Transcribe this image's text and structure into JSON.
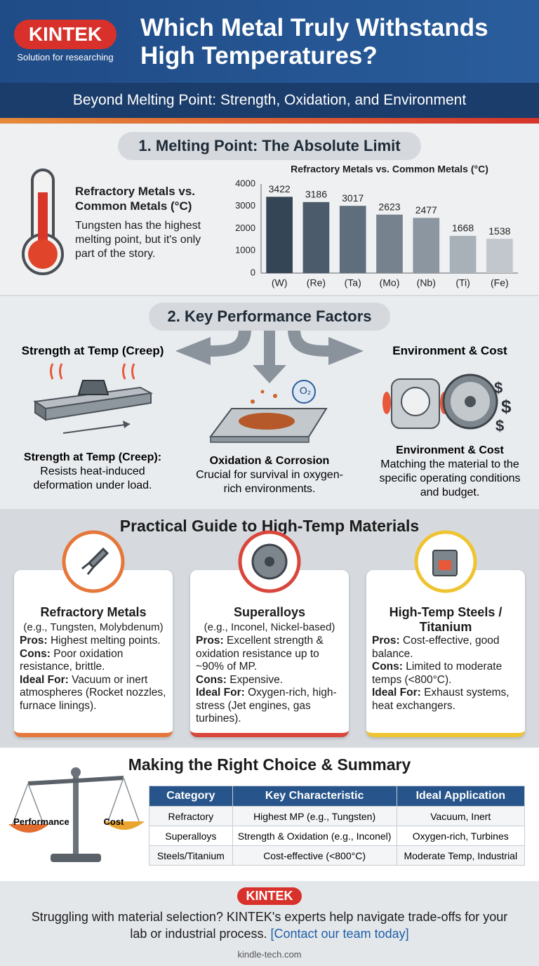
{
  "header": {
    "logo": "KINTEK",
    "tagline": "Solution for researching",
    "title": "Which Metal Truly Withstands High Temperatures?",
    "subtitle": "Beyond Melting Point: Strength, Oxidation, and Environment"
  },
  "section1": {
    "heading": "1. Melting Point: The Absolute Limit",
    "callout_title": "Refractory Metals vs. Common Metals (°C)",
    "callout_text": "Tungsten has the highest melting point, but it's only part of the story."
  },
  "chart_data": {
    "type": "bar",
    "title": "Refractory Metals vs. Common Metals (°C)",
    "categories": [
      "(W)",
      "(Re)",
      "(Ta)",
      "(Mo)",
      "(Nb)",
      "(Ti)",
      "(Fe)"
    ],
    "values": [
      3422,
      3186,
      3017,
      2623,
      2477,
      1668,
      1538
    ],
    "colors": [
      "#344556",
      "#4b5b6b",
      "#5f6e7c",
      "#76838f",
      "#8b96a0",
      "#a8b0b8",
      "#c1c7cd"
    ],
    "ylim": [
      0,
      4000
    ],
    "yticks": [
      0,
      1000,
      2000,
      3000,
      4000
    ],
    "grid": false
  },
  "section2": {
    "heading": "2. Key Performance Factors",
    "factors": [
      {
        "label": "Strength at Temp (Creep)",
        "title": "Strength at Temp (Creep):",
        "text": "Resists heat-induced deformation under load."
      },
      {
        "icon_label": "O₂",
        "title": "Oxidation & Corrosion",
        "text": "Crucial for survival in oxygen-rich environments."
      },
      {
        "label": "Environment & Cost",
        "icon_symbol": "$",
        "title": "Environment & Cost",
        "text": "Matching the material to the specific operating conditions and budget."
      }
    ]
  },
  "section3": {
    "heading": "Practical Guide to High-Temp Materials",
    "cards": [
      {
        "title": "Refractory Metals",
        "subtitle": "(e.g., Tungsten, Molybdenum)",
        "color": "#e5773a",
        "items": [
          {
            "label": "Pros:",
            "text": "Highest melting points."
          },
          {
            "label": "Cons:",
            "text": "Poor oxidation resistance, brittle."
          },
          {
            "label": "Ideal For:",
            "text": "Vacuum or inert atmospheres (Rocket nozzles, furnace linings)."
          }
        ]
      },
      {
        "title": "Superalloys",
        "subtitle": "(e.g., Inconel, Nickel-based)",
        "color": "#d9463b",
        "items": [
          {
            "label": "Pros:",
            "text": "Excellent strength & oxidation resistance up to ~90% of MP."
          },
          {
            "label": "Cons:",
            "text": "Expensive."
          },
          {
            "label": "Ideal For:",
            "text": "Oxygen-rich, high-stress (Jet engines, gas turbines)."
          }
        ]
      },
      {
        "title": "High-Temp Steels / Titanium",
        "color": "#efc431",
        "items": [
          {
            "label": "Pros:",
            "text": "Cost-effective, good balance."
          },
          {
            "label": "Cons:",
            "text": "Limited to moderate temps (<800°C)."
          },
          {
            "label": "Ideal For:",
            "text": "Exhaust systems, heat exchangers."
          }
        ]
      }
    ]
  },
  "section4": {
    "heading": "Making the Right Choice & Summary",
    "scale_left": "Performance",
    "scale_right": "Cost",
    "table": {
      "columns": [
        "Category",
        "Key Characteristic",
        "Ideal Application"
      ],
      "rows": [
        [
          "Refractory",
          "Highest MP (e.g., Tungsten)",
          "Vacuum, Inert"
        ],
        [
          "Superalloys",
          "Strength & Oxidation (e.g., Inconel)",
          "Oxygen-rich, Turbines"
        ],
        [
          "Steels/Titanium",
          "Cost-effective (<800°C)",
          "Moderate Temp, Industrial"
        ]
      ]
    }
  },
  "footer": {
    "logo": "KINTEK",
    "text": "Struggling with material selection? KINTEK's experts help navigate trade-offs for your lab or industrial process.",
    "link": "[Contact our team today]",
    "url": "kindle-tech.com"
  }
}
